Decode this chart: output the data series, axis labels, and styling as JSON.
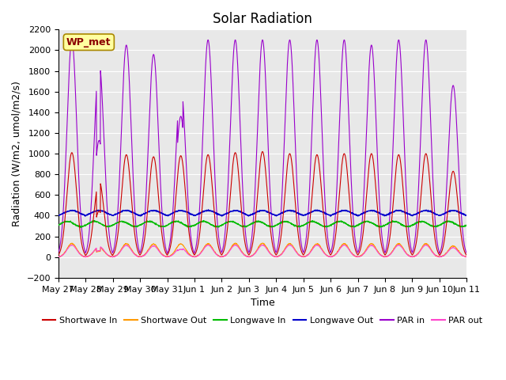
{
  "title": "Solar Radiation",
  "xlabel": "Time",
  "ylabel": "Radiation (W/m2, umol/m2/s)",
  "ylim": [
    -200,
    2200
  ],
  "yticks": [
    -200,
    0,
    200,
    400,
    600,
    800,
    1000,
    1200,
    1400,
    1600,
    1800,
    2000,
    2200
  ],
  "station_label": "WP_met",
  "bg_color": "#e8e8e8",
  "colors": {
    "shortwave_in": "#cc0000",
    "shortwave_out": "#ff9900",
    "longwave_in": "#00bb00",
    "longwave_out": "#0000cc",
    "par_in": "#9900cc",
    "par_out": "#ff44cc"
  },
  "x_tick_labels": [
    "May 27",
    "May 28",
    "May 29",
    "May 30",
    "May 31",
    "Jun 1",
    "Jun 2",
    "Jun 3",
    "Jun 4",
    "Jun 5",
    "Jun 6",
    "Jun 7",
    "Jun 8",
    "Jun 9",
    "Jun 10",
    "Jun 11"
  ],
  "n_days": 15,
  "pts_per_day": 144,
  "sw_peaks": [
    1010,
    740,
    990,
    970,
    980,
    990,
    1010,
    1020,
    1000,
    990,
    1000,
    1000,
    990,
    1000,
    830
  ],
  "par_peaks": [
    2100,
    1880,
    2050,
    1960,
    1660,
    2100,
    2100,
    2100,
    2100,
    2100,
    2100,
    2050,
    2100,
    2100,
    1660
  ]
}
